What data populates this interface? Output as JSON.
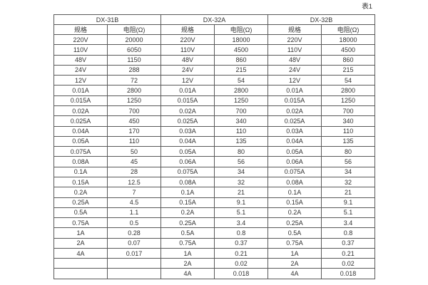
{
  "caption": "表1",
  "colors": {
    "background": "#ffffff",
    "border": "#595959",
    "text": "#333333"
  },
  "table": {
    "groups": [
      {
        "title": "DX-31B"
      },
      {
        "title": "DX-32A"
      },
      {
        "title": "DX-32B"
      }
    ],
    "column_headers": {
      "spec": "规格",
      "resistance": "电阻(Ω)"
    },
    "rows": [
      [
        "220V",
        "20000",
        "220V",
        "18000",
        "220V",
        "18000"
      ],
      [
        "110V",
        "6050",
        "110V",
        "4500",
        "110V",
        "4500"
      ],
      [
        "48V",
        "1150",
        "48V",
        "860",
        "48V",
        "860"
      ],
      [
        "24V",
        "288",
        "24V",
        "215",
        "24V",
        "215"
      ],
      [
        "12V",
        "72",
        "12V",
        "54",
        "12V",
        "54"
      ],
      [
        "0.01A",
        "2800",
        "0.01A",
        "2800",
        "0.01A",
        "2800"
      ],
      [
        "0.015A",
        "1250",
        "0.015A",
        "1250",
        "0.015A",
        "1250"
      ],
      [
        "0.02A",
        "700",
        "0.02A",
        "700",
        "0.02A",
        "700"
      ],
      [
        "0.025A",
        "450",
        "0.025A",
        "340",
        "0.025A",
        "340"
      ],
      [
        "0.04A",
        "170",
        "0.03A",
        "110",
        "0.03A",
        "110"
      ],
      [
        "0.05A",
        "110",
        "0.04A",
        "135",
        "0.04A",
        "135"
      ],
      [
        "0.075A",
        "50",
        "0.05A",
        "80",
        "0.05A",
        "80"
      ],
      [
        "0.08A",
        "45",
        "0.06A",
        "56",
        "0.06A",
        "56"
      ],
      [
        "0.1A",
        "28",
        "0.075A",
        "34",
        "0.075A",
        "34"
      ],
      [
        "0.15A",
        "12.5",
        "0.08A",
        "32",
        "0.08A",
        "32"
      ],
      [
        "0.2A",
        "7",
        "0.1A",
        "21",
        "0.1A",
        "21"
      ],
      [
        "0.25A",
        "4.5",
        "0.15A",
        "9.1",
        "0.15A",
        "9.1"
      ],
      [
        "0.5A",
        "1.1",
        "0.2A",
        "5.1",
        "0.2A",
        "5.1"
      ],
      [
        "0.75A",
        "0.5",
        "0.25A",
        "3.4",
        "0.25A",
        "3.4"
      ],
      [
        "1A",
        "0.28",
        "0.5A",
        "0.8",
        "0.5A",
        "0.8"
      ],
      [
        "2A",
        "0.07",
        "0.75A",
        "0.37",
        "0.75A",
        "0.37"
      ],
      [
        "4A",
        "0.017",
        "1A",
        "0.21",
        "1A",
        "0.21"
      ],
      [
        "",
        "",
        "2A",
        "0.02",
        "2A",
        "0.02"
      ],
      [
        "",
        "",
        "4A",
        "0.018",
        "4A",
        "0.018"
      ]
    ]
  }
}
